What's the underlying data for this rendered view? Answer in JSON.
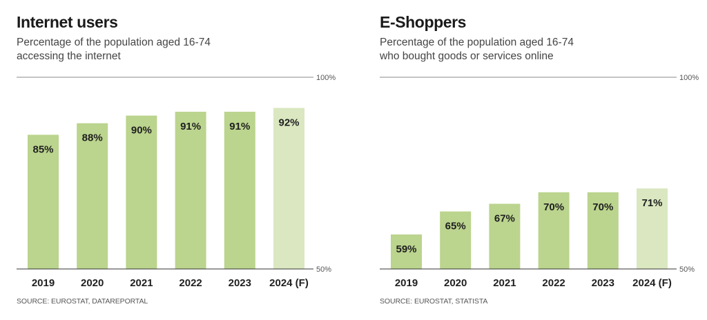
{
  "colors": {
    "bar_actual": "#bbd48e",
    "bar_forecast": "#dae7c0",
    "gridline": "#8a8a8a",
    "baseline": "#333333",
    "text_dark": "#1a1a1a",
    "text_muted": "#555555"
  },
  "chart_data": [
    {
      "type": "bar",
      "title": "Internet users",
      "subtitle_lines": [
        "Percentage of the population aged 16-74",
        "accessing the internet"
      ],
      "categories": [
        "2019",
        "2020",
        "2021",
        "2022",
        "2023",
        "2024 (F)"
      ],
      "values": [
        85,
        88,
        90,
        91,
        91,
        92
      ],
      "value_labels": [
        "85%",
        "88%",
        "90%",
        "91%",
        "91%",
        "92%"
      ],
      "forecast": [
        false,
        false,
        false,
        false,
        false,
        true
      ],
      "ylim": [
        50,
        100
      ],
      "y_ticks": [
        {
          "value": 100,
          "label": "100%"
        },
        {
          "value": 50,
          "label": "50%"
        }
      ],
      "xlabel": "",
      "ylabel": "",
      "grid": true,
      "source": "SOURCE: EUROSTAT, DATAREPORTAL"
    },
    {
      "type": "bar",
      "title": "E-Shoppers",
      "subtitle_lines": [
        "Percentage of the population aged 16-74",
        "who bought goods or services online"
      ],
      "categories": [
        "2019",
        "2020",
        "2021",
        "2022",
        "2023",
        "2024 (F)"
      ],
      "values": [
        59,
        65,
        67,
        70,
        70,
        71
      ],
      "value_labels": [
        "59%",
        "65%",
        "67%",
        "70%",
        "70%",
        "71%"
      ],
      "forecast": [
        false,
        false,
        false,
        false,
        false,
        true
      ],
      "ylim": [
        50,
        100
      ],
      "y_ticks": [
        {
          "value": 100,
          "label": "100%"
        },
        {
          "value": 50,
          "label": "50%"
        }
      ],
      "xlabel": "",
      "ylabel": "",
      "grid": true,
      "source": "SOURCE: EUROSTAT, STATISTA"
    }
  ]
}
